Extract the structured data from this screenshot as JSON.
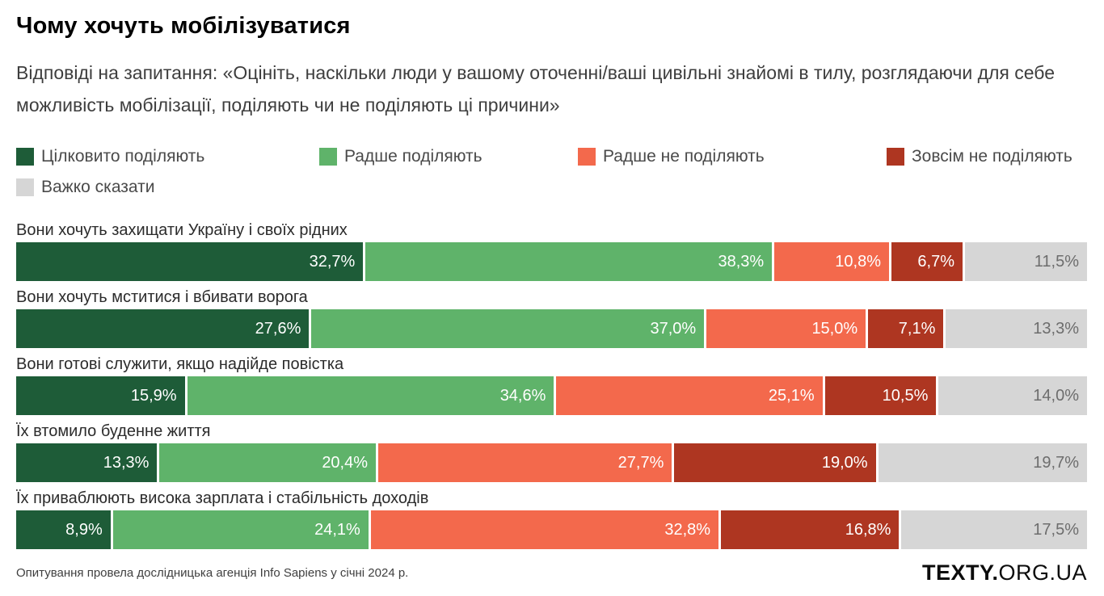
{
  "header": {
    "title": "Чому хочуть мобілізуватися",
    "subtitle": "Відповіді на запитання: «Оцініть, наскільки люди у вашому оточенні/ваші цивільні знайомі в тилу, розглядаючи для себе можливість мобілізації, поділяють чи не поділяють ці причини»"
  },
  "colors": {
    "fully_share": "#1e5c38",
    "rather_share": "#5fb36a",
    "rather_not_share": "#f3694c",
    "not_share_at_all": "#ae3621",
    "hard_to_say": "#d6d6d6",
    "gray_label_text": "#6d6d6d",
    "white_label_text": "#ffffff"
  },
  "legend": {
    "items": [
      {
        "label": "Цілковито поділяють",
        "color": "#1e5c38"
      },
      {
        "label": "Радше поділяють",
        "color": "#5fb36a"
      },
      {
        "label": "Радше не поділяють",
        "color": "#f3694c"
      },
      {
        "label": "Зовсім не поділяють",
        "color": "#ae3621"
      },
      {
        "label": "Важко сказати",
        "color": "#d6d6d6"
      }
    ]
  },
  "chart_data": {
    "type": "bar",
    "orientation": "horizontal",
    "stacked": true,
    "unit": "%",
    "xlim": [
      0,
      100
    ],
    "value_format": "comma_decimal_percent",
    "legend_position": "top",
    "categories": [
      "Вони хочуть захищати Україну і своїх рідних",
      "Вони хочуть мститися і вбивати ворога",
      "Вони готові служити, якщо надійде повістка",
      "Їх втомило буденне життя",
      "Їх приваблюють висока зарплата і стабільність доходів"
    ],
    "series": [
      {
        "name": "Цілковито поділяють",
        "color": "#1e5c38",
        "label_color": "#ffffff",
        "values": [
          32.7,
          27.6,
          15.9,
          13.3,
          8.9
        ]
      },
      {
        "name": "Радше поділяють",
        "color": "#5fb36a",
        "label_color": "#ffffff",
        "values": [
          38.3,
          37.0,
          34.6,
          20.4,
          24.1
        ]
      },
      {
        "name": "Радше не поділяють",
        "color": "#f3694c",
        "label_color": "#ffffff",
        "values": [
          10.8,
          15.0,
          25.1,
          27.7,
          32.8
        ]
      },
      {
        "name": "Зовсім не поділяють",
        "color": "#ae3621",
        "label_color": "#ffffff",
        "values": [
          6.7,
          7.1,
          10.5,
          19.0,
          16.8
        ]
      },
      {
        "name": "Важко сказати",
        "color": "#d6d6d6",
        "label_color": "#6d6d6d",
        "values": [
          11.5,
          13.3,
          14.0,
          19.7,
          17.5
        ]
      }
    ]
  },
  "footer": {
    "source": "Опитування провела дослідницька агенція Info Sapiens у січні 2024 р.",
    "logo_bold": "TEXTY.",
    "logo_light": "ORG.UA"
  }
}
